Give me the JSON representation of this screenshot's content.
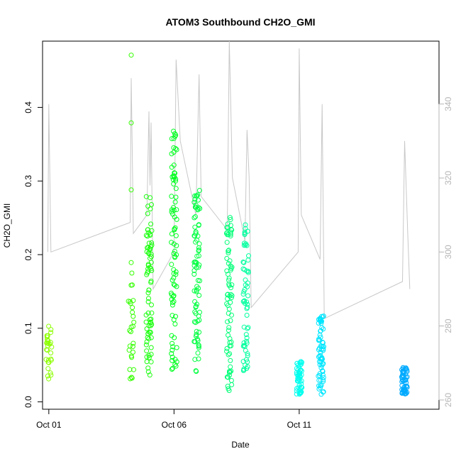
{
  "chart_data": {
    "type": "scatter",
    "title": "ATOM3 Southbound CH2O_GMI",
    "xlabel": "Date",
    "ylabel": "CH2O_GMI",
    "x_axis": {
      "type": "date",
      "range": [
        "2017-09-30T18:00",
        "2017-10-16T14:00"
      ],
      "ticks": [
        {
          "value": "2017-10-01",
          "label": "Oct 01"
        },
        {
          "value": "2017-10-06",
          "label": "Oct 06"
        },
        {
          "value": "2017-10-11",
          "label": "Oct 11"
        }
      ]
    },
    "y_axis_left": {
      "range": [
        -0.01,
        0.49
      ],
      "ticks": [
        {
          "value": 0.0,
          "label": "0.0"
        },
        {
          "value": 0.1,
          "label": "0.1"
        },
        {
          "value": 0.2,
          "label": "0.2"
        },
        {
          "value": 0.3,
          "label": "0.3"
        },
        {
          "value": 0.4,
          "label": "0.4"
        }
      ]
    },
    "y_axis_right": {
      "range": [
        257.5,
        357
      ],
      "color": "#b5b5b5",
      "ticks": [
        {
          "value": 260,
          "label": "260"
        },
        {
          "value": 280,
          "label": "280"
        },
        {
          "value": 300,
          "label": "300"
        },
        {
          "value": 320,
          "label": "320"
        },
        {
          "value": 340,
          "label": "340"
        }
      ]
    },
    "grid": false,
    "point_color_scale": [
      "#88ff00",
      "#00ff2b",
      "#00ff66",
      "#00ffea",
      "#00b8ff"
    ],
    "clusters": [
      {
        "x": "2017-10-01T00:00",
        "ymin": 0.022,
        "ymax": 0.105,
        "n": 30,
        "color": "#8cff00"
      },
      {
        "x": "2017-10-04T07:00",
        "ymin": 0.03,
        "ymax": 0.19,
        "n": 28,
        "color": "#33ff00",
        "extra": [
          0.288,
          0.379,
          0.471
        ]
      },
      {
        "x": "2017-10-05T00:00",
        "ymin": 0.03,
        "ymax": 0.285,
        "n": 80,
        "color": "#1aff0d"
      },
      {
        "x": "2017-10-06T00:00",
        "ymin": 0.04,
        "ymax": 0.37,
        "n": 85,
        "color": "#00ff1f"
      },
      {
        "x": "2017-10-06T22:00",
        "ymin": 0.04,
        "ymax": 0.29,
        "n": 80,
        "color": "#00ff40"
      },
      {
        "x": "2017-10-08T05:00",
        "ymin": 0.015,
        "ymax": 0.255,
        "n": 75,
        "color": "#00ff77"
      },
      {
        "x": "2017-10-08T21:00",
        "ymin": 0.04,
        "ymax": 0.245,
        "n": 60,
        "color": "#00ff9e"
      },
      {
        "x": "2017-10-11T00:00",
        "ymin": 0.01,
        "ymax": 0.055,
        "n": 55,
        "color": "#00ffee"
      },
      {
        "x": "2017-10-11T21:00",
        "ymin": 0.01,
        "ymax": 0.12,
        "n": 70,
        "color": "#00e6ff"
      },
      {
        "x": "2017-10-15T05:00",
        "ymin": 0.01,
        "ymax": 0.048,
        "n": 60,
        "color": "#00aaff"
      }
    ],
    "gray_line": {
      "color": "#c8c8c8",
      "points": [
        [
          "2017-09-30T23:00",
          300
        ],
        [
          "2017-10-01T00:00",
          340
        ],
        [
          "2017-10-01T02:00",
          300
        ],
        [
          "2017-10-04T06:00",
          308
        ],
        [
          "2017-10-04T07:00",
          347
        ],
        [
          "2017-10-04T08:00",
          327
        ],
        [
          "2017-10-04T09:00",
          305
        ],
        [
          "2017-10-04T22:00",
          310
        ],
        [
          "2017-10-05T00:00",
          338
        ],
        [
          "2017-10-05T01:00",
          318
        ],
        [
          "2017-10-05T02:00",
          335
        ],
        [
          "2017-10-05T04:00",
          290
        ],
        [
          "2017-10-06T00:00",
          300
        ],
        [
          "2017-10-06T02:00",
          352
        ],
        [
          "2017-10-06T06:00",
          330
        ],
        [
          "2017-10-06T21:00",
          310
        ],
        [
          "2017-10-07T00:00",
          348
        ],
        [
          "2017-10-07T02:00",
          315
        ],
        [
          "2017-10-08T03:00",
          306
        ],
        [
          "2017-10-08T05:00",
          357
        ],
        [
          "2017-10-08T08:00",
          320
        ],
        [
          "2017-10-08T20:00",
          303
        ],
        [
          "2017-10-08T22:00",
          333
        ],
        [
          "2017-10-09T00:00",
          320
        ],
        [
          "2017-10-09T02:00",
          285
        ],
        [
          "2017-10-10T23:00",
          300
        ],
        [
          "2017-10-11T00:00",
          355
        ],
        [
          "2017-10-11T02:00",
          310
        ],
        [
          "2017-10-11T20:00",
          298
        ],
        [
          "2017-10-11T22:00",
          340
        ],
        [
          "2017-10-12T00:00",
          282
        ],
        [
          "2017-10-15T03:00",
          292
        ],
        [
          "2017-10-15T05:00",
          330
        ],
        [
          "2017-10-15T08:00",
          305
        ],
        [
          "2017-10-15T10:00",
          290
        ]
      ]
    }
  }
}
